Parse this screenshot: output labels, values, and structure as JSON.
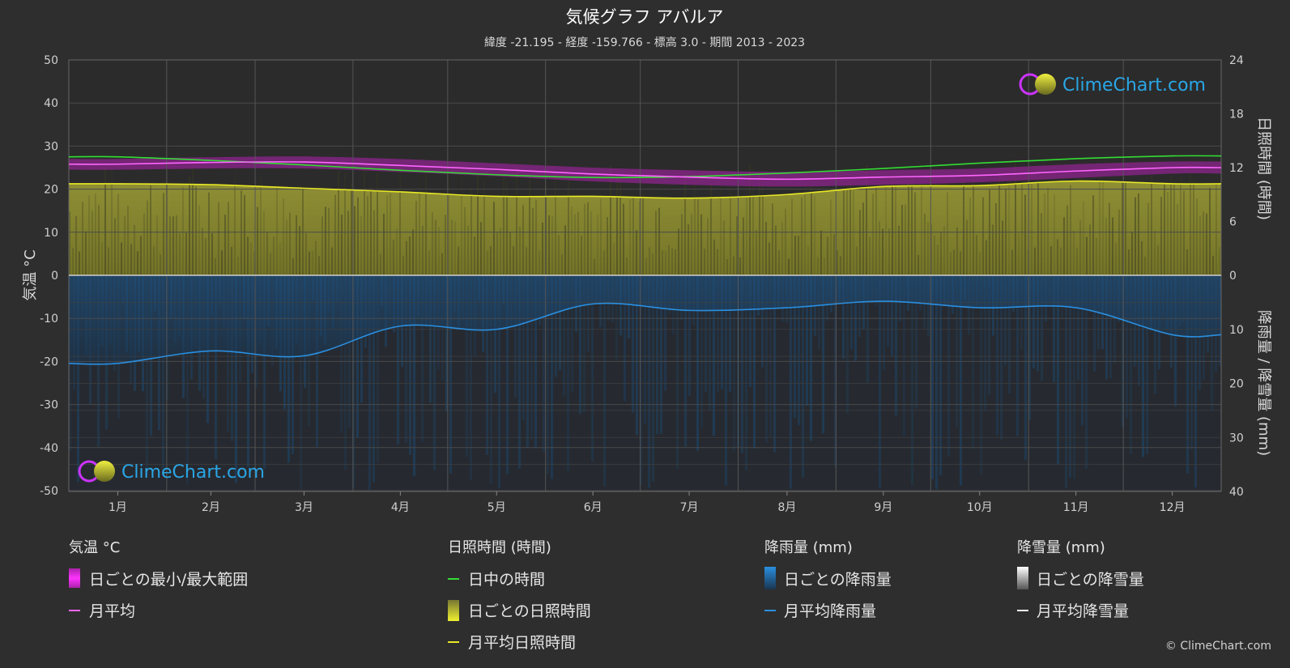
{
  "header": {
    "title": "気候グラフ アバルア",
    "subtitle": "緯度 -21.195 - 経度 -159.766 - 標高 3.0 - 期間 2013 - 2023"
  },
  "brand": {
    "name": "ClimeChart.com",
    "copyright": "© ClimeChart.com"
  },
  "axes": {
    "left_title": "気温 °C",
    "right_top_title": "日照時間 (時間)",
    "right_bottom_title": "降雨量 / 降雪量 (mm)",
    "left_ticks": [
      "50",
      "40",
      "30",
      "20",
      "10",
      "0",
      "-10",
      "-20",
      "-30",
      "-40",
      "-50"
    ],
    "right_top_ticks": [
      "24",
      "18",
      "12",
      "6",
      "0"
    ],
    "right_bottom_ticks": [
      "10",
      "20",
      "30",
      "40"
    ]
  },
  "colors": {
    "background": "#2e2e2e",
    "daylight": "#33dd33",
    "sunshine": "#e8e826",
    "sunshine_fill": "#8a8a2c",
    "temperature_band": "#cc22cc",
    "temperature_line": "#ff66ff",
    "rain_line": "#2a8fe0",
    "rain_fill": "#1f4a6e"
  },
  "chart_data": {
    "type": "line",
    "categories": [
      "1月",
      "2月",
      "3月",
      "4月",
      "5月",
      "6月",
      "7月",
      "8月",
      "9月",
      "10月",
      "11月",
      "12月"
    ],
    "temperature_ylim": [
      -50,
      50
    ],
    "sunshine_ylim": [
      0,
      24
    ],
    "precip_ylim": [
      0,
      40
    ],
    "series": [
      {
        "name": "日中の時間",
        "axis": "sunshine_hours",
        "values": [
          13.2,
          12.8,
          12.3,
          11.7,
          11.2,
          10.9,
          11.0,
          11.4,
          11.9,
          12.5,
          13.0,
          13.3
        ]
      },
      {
        "name": "月平均日照時間",
        "axis": "sunshine_hours",
        "values": [
          10.2,
          10.1,
          9.7,
          9.3,
          8.8,
          8.8,
          8.6,
          9.0,
          9.9,
          10.0,
          10.5,
          10.2
        ]
      },
      {
        "name": "月平均",
        "axis": "temperature_c",
        "values": [
          25.8,
          26.2,
          26.3,
          25.5,
          24.6,
          23.5,
          22.8,
          22.3,
          22.8,
          23.2,
          24.2,
          25.0
        ]
      },
      {
        "name": "月平均降雨量",
        "axis": "precip_mm",
        "values": [
          16.3,
          14.0,
          14.9,
          9.4,
          10.0,
          5.3,
          6.5,
          6.0,
          4.8,
          6.0,
          6.0,
          11.0
        ]
      }
    ],
    "temperature_band": {
      "name": "日ごとの最小/最大範囲",
      "min": [
        24.5,
        24.8,
        24.8,
        24.0,
        23.0,
        21.8,
        21.0,
        20.6,
        21.0,
        21.6,
        22.6,
        23.6
      ],
      "max": [
        27.0,
        27.4,
        27.6,
        27.0,
        26.0,
        25.0,
        24.4,
        24.0,
        24.4,
        24.8,
        25.8,
        26.4
      ]
    },
    "legend_groups": [
      {
        "heading": "気温 °C",
        "items": [
          "日ごとの最小/最大範囲",
          "月平均"
        ]
      },
      {
        "heading": "日照時間 (時間)",
        "items": [
          "日中の時間",
          "日ごとの日照時間",
          "月平均日照時間"
        ]
      },
      {
        "heading": "降雨量 (mm)",
        "items": [
          "日ごとの降雨量",
          "月平均降雨量"
        ]
      },
      {
        "heading": "降雪量 (mm)",
        "items": [
          "日ごとの降雪量",
          "月平均降雪量"
        ]
      }
    ]
  }
}
